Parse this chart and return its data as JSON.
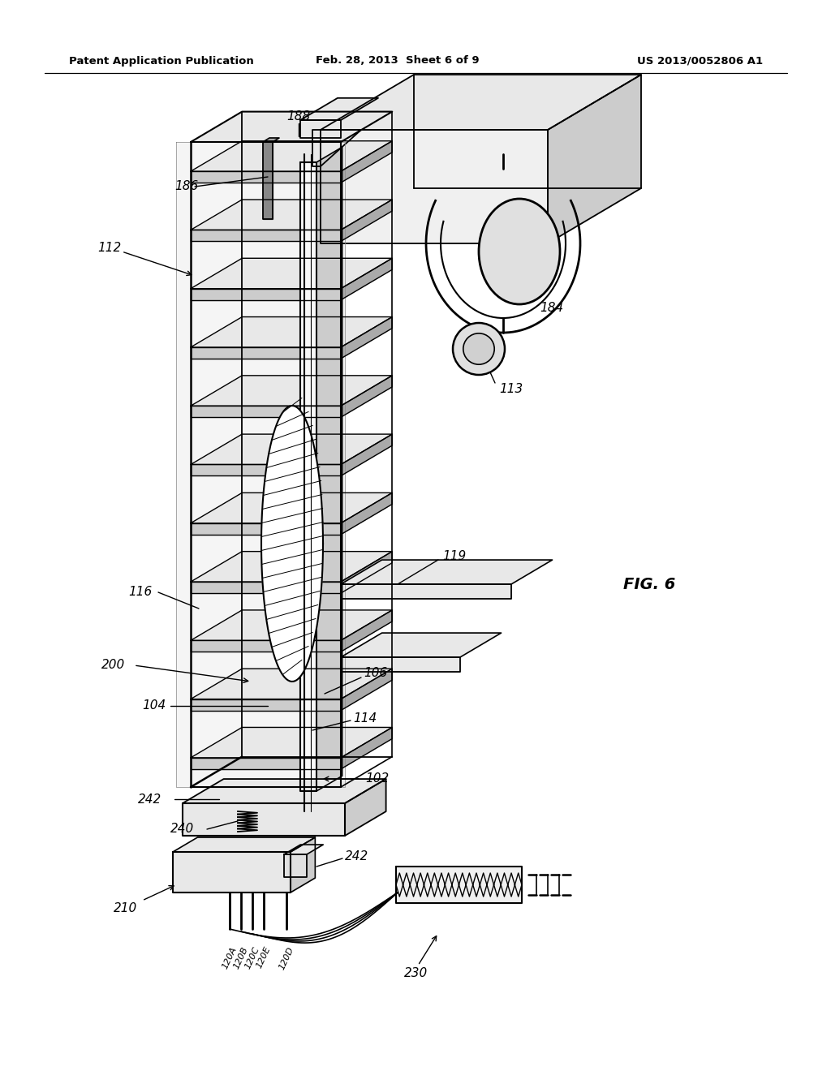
{
  "header_left": "Patent Application Publication",
  "header_center": "Feb. 28, 2013  Sheet 6 of 9",
  "header_right": "US 2013/0052806 A1",
  "fig_label": "FIG. 6",
  "bg_color": "#ffffff",
  "line_color": "#000000",
  "gray_light": "#e8e8e8",
  "gray_mid": "#cccccc",
  "gray_dark": "#aaaaaa"
}
